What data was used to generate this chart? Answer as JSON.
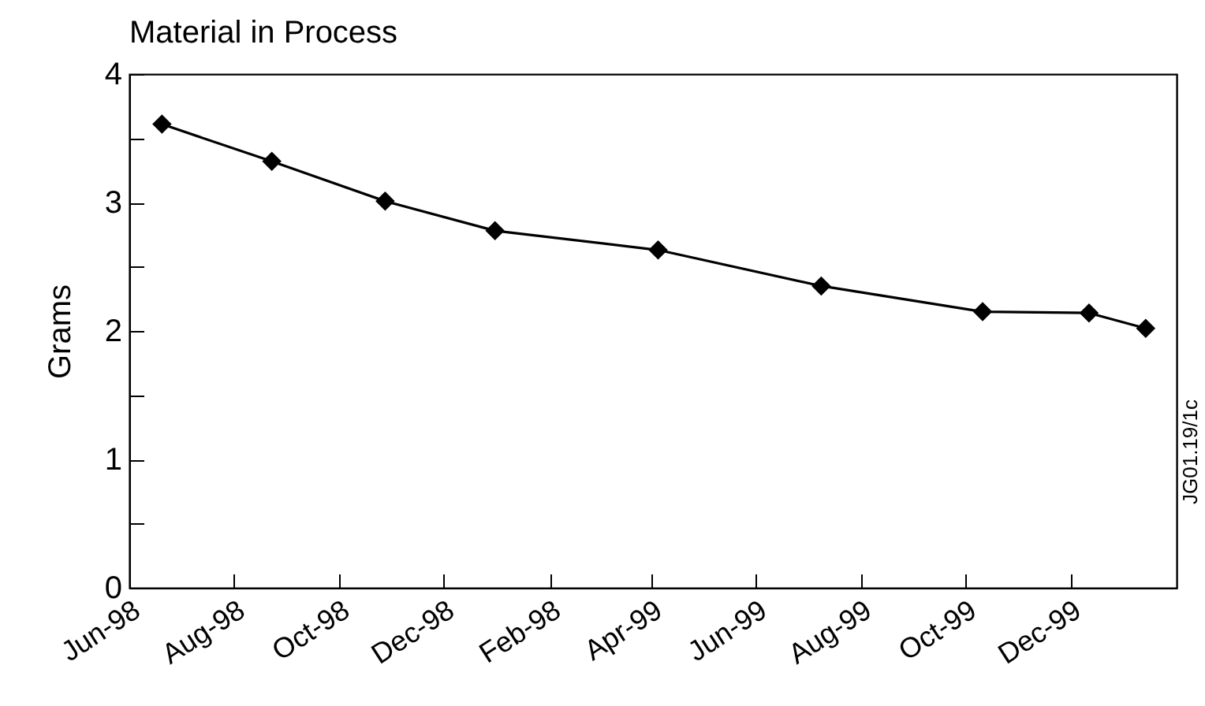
{
  "chart_data": {
    "type": "line",
    "title": "Material in Process",
    "ylabel": "Grams",
    "x": [
      "1998-06-20",
      "1998-08-23",
      "1998-10-28",
      "1998-12-31",
      "1999-04-05",
      "1999-07-09",
      "1999-10-11",
      "1999-12-12",
      "2000-01-14"
    ],
    "series": [
      {
        "color": "#000000",
        "values": [
          3.61,
          3.32,
          3.01,
          2.78,
          2.63,
          2.35,
          2.15,
          2.14,
          2.02
        ]
      }
    ],
    "xlim": [
      "1998-06",
      "2000-02"
    ],
    "xticks": [
      {
        "value": "1998-06",
        "label": "Jun-98"
      },
      {
        "value": "1998-08",
        "label": "Aug-98"
      },
      {
        "value": "1998-10",
        "label": "Oct-98"
      },
      {
        "value": "1998-12",
        "label": "Dec-98"
      },
      {
        "value": "1999-02",
        "label": "Feb-98"
      },
      {
        "value": "1999-04",
        "label": "Apr-99"
      },
      {
        "value": "1999-06",
        "label": "Jun-99"
      },
      {
        "value": "1999-08",
        "label": "Aug-99"
      },
      {
        "value": "1999-10",
        "label": "Oct-99"
      },
      {
        "value": "1999-12",
        "label": "Dec-99"
      }
    ],
    "ylim": [
      0,
      4
    ],
    "yticks": [
      0,
      {
        "value": 0.5,
        "label": null
      },
      1,
      {
        "value": 1.5,
        "label": null
      },
      2,
      {
        "value": 2.5,
        "label": null
      },
      3,
      {
        "value": 3.5,
        "label": null
      },
      4
    ],
    "marker": "diamond",
    "line_style": "solid",
    "annotations": [
      "JG01.19/1c"
    ]
  }
}
